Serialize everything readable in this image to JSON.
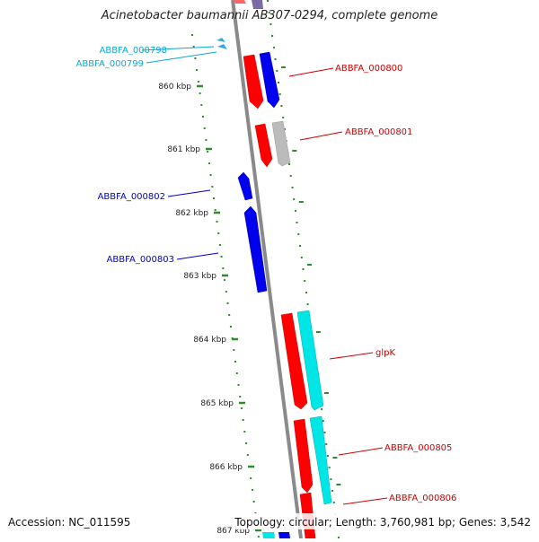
{
  "title": "Acinetobacter baumannii AB307-0294, complete genome",
  "accession": "Accession: NC_011595",
  "summary": "Topology: circular; Length: 3,760,981 bp; Genes: 3,542",
  "colors": {
    "backbone": "#8a8a8a",
    "kbp_tick": "#2e8b2e",
    "forward_cds": "#ff0000",
    "reverse_cds": "#0000ee",
    "grey_cds": "#bbbbbb",
    "cyan_cds": "#00e5e5",
    "label_red": "#cc0000",
    "label_blue": "#0000cc",
    "label_cyan": "#0aa9d8"
  },
  "kbp_labels": [
    "860 kbp",
    "861 kbp",
    "862 kbp",
    "863 kbp",
    "864 kbp",
    "865 kbp",
    "866 kbp",
    "867 kbp"
  ],
  "gene_labels": [
    {
      "text": "ABBFA_000798",
      "color": "cyan"
    },
    {
      "text": "ABBFA_000799",
      "color": "cyan"
    },
    {
      "text": "ABBFA_000800",
      "color": "red"
    },
    {
      "text": "ABBFA_000801",
      "color": "red"
    },
    {
      "text": "ABBFA_000802",
      "color": "blue"
    },
    {
      "text": "ABBFA_000803",
      "color": "blue"
    },
    {
      "text": "glpK",
      "color": "red"
    },
    {
      "text": "ABBFA_000805",
      "color": "red"
    },
    {
      "text": "ABBFA_000806",
      "color": "red"
    }
  ]
}
